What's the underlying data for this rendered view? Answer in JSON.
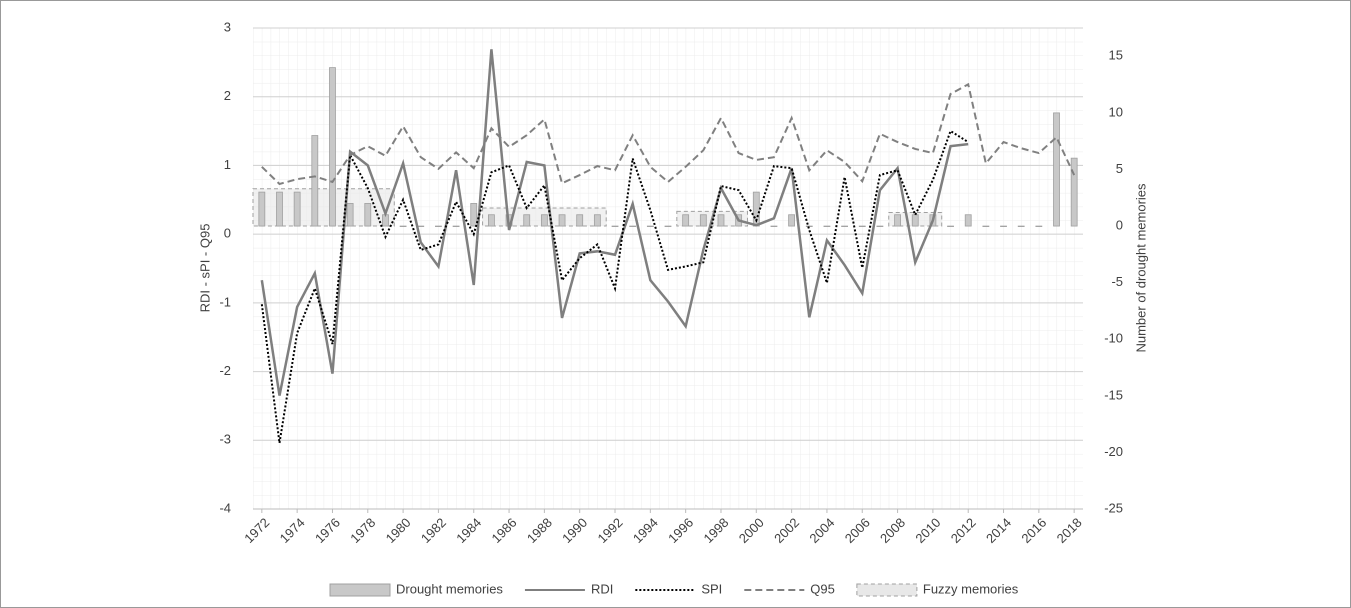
{
  "chart_data": {
    "type": "combo",
    "ylabel": "RDI - sPI - Q95",
    "y2label": "Number of drought memories",
    "x": [
      1972,
      1973,
      1974,
      1975,
      1976,
      1977,
      1978,
      1979,
      1980,
      1981,
      1982,
      1983,
      1984,
      1985,
      1986,
      1987,
      1988,
      1989,
      1990,
      1991,
      1992,
      1993,
      1994,
      1995,
      1996,
      1997,
      1998,
      1999,
      2000,
      2001,
      2002,
      2003,
      2004,
      2005,
      2006,
      2007,
      2008,
      2009,
      2010,
      2011,
      2012,
      2013,
      2014,
      2015,
      2016,
      2017,
      2018
    ],
    "xlim": [
      1971.5,
      2018.5
    ],
    "xticks": [
      1972,
      1974,
      1976,
      1978,
      1980,
      1982,
      1984,
      1986,
      1988,
      1990,
      1992,
      1994,
      1996,
      1998,
      2000,
      2002,
      2004,
      2006,
      2008,
      2010,
      2012,
      2014,
      2016,
      2018
    ],
    "ylim": [
      -4,
      3
    ],
    "yticks": [
      -4,
      -3,
      -2,
      -1,
      0,
      1,
      2,
      3
    ],
    "y2lim": [
      -25,
      17.5
    ],
    "y2ticks": [
      -25,
      -20,
      -15,
      -10,
      -5,
      0,
      5,
      10,
      15
    ],
    "grid": true,
    "legend": "bottom",
    "series": [
      {
        "name": "Drought memories",
        "type": "bar",
        "axis": "y2",
        "color": "#c8c8c8",
        "values": [
          3,
          3,
          3,
          8,
          14,
          2,
          2,
          1,
          0,
          0,
          0,
          0,
          2,
          1,
          1,
          1,
          1,
          1,
          1,
          1,
          0,
          0,
          0,
          0,
          1,
          1,
          1,
          1,
          3,
          0,
          1,
          0,
          0,
          0,
          0,
          0,
          1,
          1,
          1,
          0,
          1,
          0,
          0,
          0,
          0,
          10,
          6
        ]
      },
      {
        "name": "RDI",
        "type": "line",
        "color": "#7f7f7f",
        "dash": "solid",
        "values": [
          -0.67,
          -2.35,
          -1.06,
          -0.57,
          -2.03,
          1.2,
          1.0,
          0.3,
          1.03,
          -0.12,
          -0.47,
          0.93,
          -0.74,
          2.69,
          0.06,
          1.05,
          1.0,
          -1.22,
          -0.28,
          -0.25,
          -0.3,
          0.44,
          -0.67,
          -0.98,
          -1.34,
          -0.23,
          0.67,
          0.2,
          0.13,
          0.23,
          0.96,
          -1.21,
          -0.09,
          -0.45,
          -0.86,
          0.64,
          0.96,
          -0.41,
          0.2,
          1.28,
          1.31,
          null,
          null,
          null,
          null,
          null,
          null
        ]
      },
      {
        "name": "SPI",
        "type": "line",
        "color": "#000000",
        "dash": "dotted",
        "values": [
          -1.02,
          -3.04,
          -1.44,
          -0.79,
          -1.6,
          1.15,
          0.67,
          -0.04,
          0.5,
          -0.23,
          -0.15,
          0.47,
          0.0,
          0.9,
          1.0,
          0.38,
          0.71,
          -0.67,
          -0.35,
          -0.15,
          -0.79,
          1.1,
          0.35,
          -0.52,
          -0.47,
          -0.41,
          0.7,
          0.64,
          0.2,
          0.99,
          0.96,
          0.06,
          -0.71,
          0.83,
          -0.49,
          0.86,
          0.93,
          0.28,
          0.79,
          1.5,
          1.34,
          null,
          null,
          null,
          null,
          null,
          null
        ]
      },
      {
        "name": "Q95",
        "type": "line",
        "color": "#808080",
        "dash": "dashed",
        "values": [
          0.98,
          0.73,
          0.8,
          0.84,
          0.76,
          1.15,
          1.28,
          1.14,
          1.57,
          1.12,
          0.95,
          1.19,
          0.96,
          1.54,
          1.27,
          1.44,
          1.67,
          0.74,
          0.86,
          0.99,
          0.93,
          1.44,
          0.98,
          0.76,
          0.98,
          1.22,
          1.69,
          1.18,
          1.08,
          1.12,
          1.69,
          0.93,
          1.22,
          1.05,
          0.77,
          1.46,
          1.34,
          1.24,
          1.18,
          2.04,
          2.18,
          1.03,
          1.34,
          1.25,
          1.18,
          1.41,
          0.86
        ]
      }
    ],
    "fuzzy": {
      "name": "Fuzzy memories",
      "axis": "y2",
      "color": "#e8e8e8",
      "ranges": [
        {
          "start": 1971.5,
          "end": 1979.5,
          "value": 3.3
        },
        {
          "start": 1984.5,
          "end": 1991.5,
          "value": 1.6
        },
        {
          "start": 1995.5,
          "end": 1999.5,
          "value": 1.3
        },
        {
          "start": 2007.5,
          "end": 2010.5,
          "value": 1.2
        }
      ]
    }
  }
}
